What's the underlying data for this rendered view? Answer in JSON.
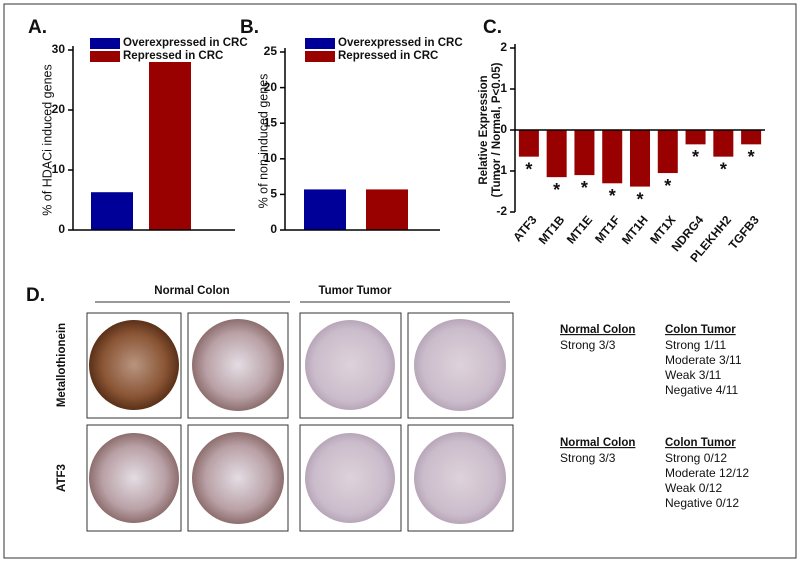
{
  "chart_data": [
    {
      "type": "bar",
      "title": "A.",
      "ylabel": "% of HDACi induced genes",
      "series": [
        {
          "name": "Overexpressed in CRC",
          "color": "#000099",
          "values": [
            6.3
          ]
        },
        {
          "name": "Repressed in CRC",
          "color": "#990000",
          "values": [
            28
          ]
        }
      ],
      "ylim": [
        0,
        30
      ],
      "yticks": [
        0,
        10,
        20,
        30
      ],
      "legend": "upper left"
    },
    {
      "type": "bar",
      "title": "B.",
      "ylabel": "% of non-induced genes",
      "series": [
        {
          "name": "Overexpressed in CRC",
          "color": "#000099",
          "values": [
            5.7
          ]
        },
        {
          "name": "Repressed in CRC",
          "color": "#990000",
          "values": [
            5.7
          ]
        }
      ],
      "ylim": [
        0,
        25
      ],
      "yticks": [
        0,
        5,
        10,
        15,
        20,
        25
      ],
      "legend": "upper left"
    },
    {
      "type": "bar",
      "title": "C.",
      "ylabel": [
        "Relative Expression",
        "(Tumor / Normal, P<0.05)"
      ],
      "categories": [
        "ATF3",
        "MT1B",
        "MT1E",
        "MT1F",
        "MT1H",
        "MT1X",
        "NDRG4",
        "PLEKHH2",
        "TGFB3"
      ],
      "values": [
        -0.65,
        -1.15,
        -1.1,
        -1.3,
        -1.38,
        -1.05,
        -0.35,
        -0.65,
        -0.35
      ],
      "annotations": [
        "*",
        "*",
        "*",
        "*",
        "*",
        "*",
        "*",
        "*",
        "*"
      ],
      "color": "#990000",
      "ylim": [
        -2,
        2
      ],
      "yticks": [
        -2,
        -1,
        0,
        1,
        2
      ]
    }
  ],
  "panel_d": {
    "label": "D.",
    "column_groups": [
      "Normal Colon",
      "Tumor Tumor"
    ],
    "rows": [
      {
        "label": "Metallothionein",
        "normal_header": "Normal Colon",
        "normal": [
          "Strong 3/3"
        ],
        "tumor_header": "Colon Tumor",
        "tumor": [
          "Strong 1/11",
          "Moderate 3/11",
          "Weak 3/11",
          "Negative 4/11"
        ]
      },
      {
        "label": "ATF3",
        "normal_header": "Normal Colon",
        "normal": [
          "Strong 3/3"
        ],
        "tumor_header": "Colon Tumor",
        "tumor": [
          "Strong 0/12",
          "Moderate 12/12",
          "Weak 0/12",
          "Negative 0/12"
        ]
      }
    ]
  }
}
